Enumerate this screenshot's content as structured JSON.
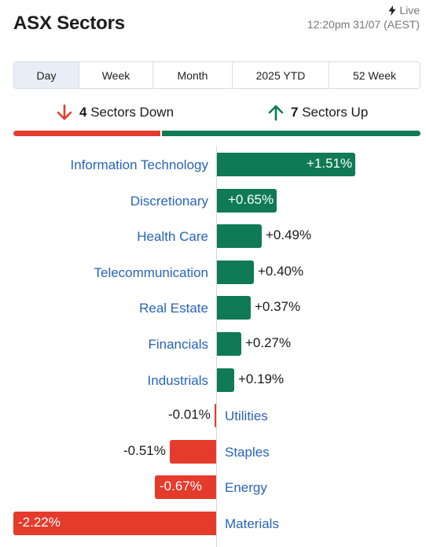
{
  "header": {
    "title": "ASX Sectors",
    "live_label": "Live",
    "timestamp": "12:20pm 31/07 (AEST)"
  },
  "tabs": [
    "Day",
    "Week",
    "Month",
    "2025 YTD",
    "52 Week"
  ],
  "active_tab": "Day",
  "summary": {
    "down_count": "4",
    "down_label": "Sectors Down",
    "up_count": "7",
    "up_label": "Sectors Up",
    "down_color": "#e53b2c",
    "up_color": "#0f7a55"
  },
  "chart_data": {
    "type": "bar",
    "orientation": "horizontal",
    "categories": [
      "Information Technology",
      "Discretionary",
      "Health Care",
      "Telecommunication",
      "Real Estate",
      "Financials",
      "Industrials",
      "Utilities",
      "Staples",
      "Energy",
      "Materials"
    ],
    "values": [
      1.51,
      0.65,
      0.49,
      0.4,
      0.37,
      0.27,
      0.19,
      -0.01,
      -0.51,
      -0.67,
      -2.22
    ],
    "labels": [
      "+1.51%",
      "+0.65%",
      "+0.49%",
      "+0.40%",
      "+0.37%",
      "+0.27%",
      "+0.19%",
      "-0.01%",
      "-0.51%",
      "-0.67%",
      "-2.22%"
    ],
    "positive_color": "#0f7a55",
    "negative_color": "#e53b2c"
  }
}
